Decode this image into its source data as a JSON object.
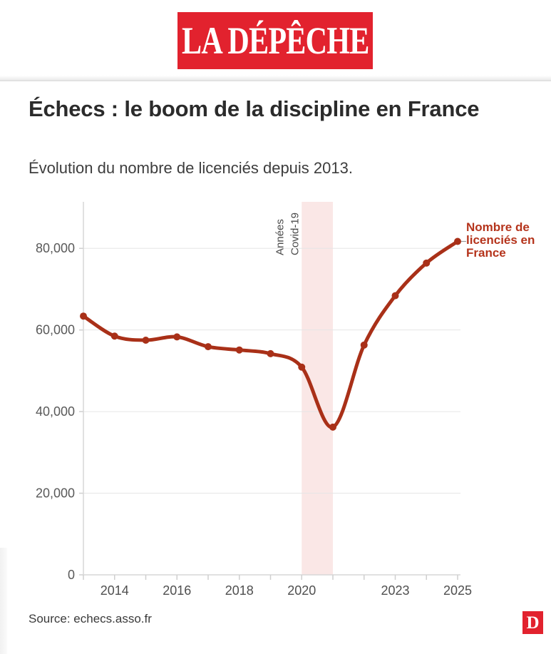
{
  "header": {
    "logo_text": "LA DÉPÊCHE"
  },
  "article": {
    "title": "Échecs : le boom de la discipline en France",
    "subtitle": "Évolution du nombre de licenciés depuis 2013."
  },
  "chart_data": {
    "type": "line",
    "title": "Échecs : le boom de la discipline en France",
    "subtitle": "Évolution du nombre de licenciés depuis 2013.",
    "x": [
      2013,
      2014,
      2015,
      2016,
      2017,
      2018,
      2019,
      2020,
      2021,
      2022,
      2023,
      2024,
      2025
    ],
    "series": [
      {
        "name": "Nombre de licenciés en France",
        "values": [
          63400,
          58500,
          57500,
          58300,
          55900,
          55100,
          54200,
          50900,
          36200,
          56300,
          68400,
          76400,
          81700
        ]
      }
    ],
    "xlabel": "",
    "ylabel": "",
    "ylim": [
      0,
      91400
    ],
    "grid": "horizontal",
    "y_ticks": [
      {
        "v": 0,
        "label": "0"
      },
      {
        "v": 20000,
        "label": "20,000"
      },
      {
        "v": 40000,
        "label": "40,000"
      },
      {
        "v": 60000,
        "label": "60,000"
      },
      {
        "v": 80000,
        "label": "80,000"
      }
    ],
    "x_tick_years": [
      2014,
      2016,
      2018,
      2020,
      2023,
      2025
    ],
    "band": {
      "from": 2020,
      "to": 2021,
      "label_lines": [
        "Années",
        "Covid-19"
      ],
      "color": "#fae7e6"
    },
    "end_label": {
      "text": "Nombre de\nlicenciés en\nFrance",
      "color": "#b5341c"
    },
    "line_color": "#a93018",
    "point_color": "#a93018",
    "legend_position": "end-of-line"
  },
  "footer": {
    "source": "Source: echecs.asso.fr",
    "logo_letter": "D"
  },
  "colors": {
    "brand_red": "#e2222e",
    "line_red": "#a93018",
    "label_red": "#b5341c",
    "band_pink": "#fae7e6"
  }
}
